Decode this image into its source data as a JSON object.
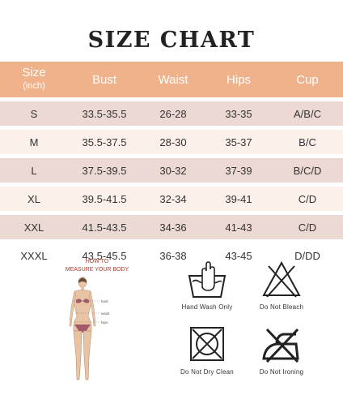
{
  "title": "SIZE CHART",
  "table": {
    "headers": {
      "size": "Size",
      "size_unit": "(inch)",
      "bust": "Bust",
      "waist": "Waist",
      "hips": "Hips",
      "cup": "Cup"
    },
    "rows": [
      {
        "size": "S",
        "bust": "33.5-35.5",
        "waist": "26-28",
        "hips": "33-35",
        "cup": "A/B/C"
      },
      {
        "size": "M",
        "bust": "35.5-37.5",
        "waist": "28-30",
        "hips": "35-37",
        "cup": "B/C"
      },
      {
        "size": "L",
        "bust": "37.5-39.5",
        "waist": "30-32",
        "hips": "37-39",
        "cup": "B/C/D"
      },
      {
        "size": "XL",
        "bust": "39.5-41.5",
        "waist": "32-34",
        "hips": "39-41",
        "cup": "C/D"
      },
      {
        "size": "XXL",
        "bust": "41.5-43.5",
        "waist": "34-36",
        "hips": "41-43",
        "cup": "C/D"
      },
      {
        "size": "XXXL",
        "bust": "43.5-45.5",
        "waist": "36-38",
        "hips": "43-45",
        "cup": "D/DD"
      }
    ]
  },
  "measure": {
    "line1": "HOW TO",
    "line2": "MEASURE YOUR BODY",
    "labels": {
      "bust": "bust",
      "waist": "waist",
      "hips": "hips"
    }
  },
  "care": {
    "hand_wash": "Hand Wash Only",
    "no_bleach": "Do Not Bleach",
    "no_dry_clean": "Do Not Dry Clean",
    "no_iron": "Do Not Ironing"
  },
  "colors": {
    "header_bg": "#f0b28a",
    "row_shade": "#ecd9d4",
    "row_light": "#fbf0ea",
    "accent_text": "#b23a2b"
  }
}
